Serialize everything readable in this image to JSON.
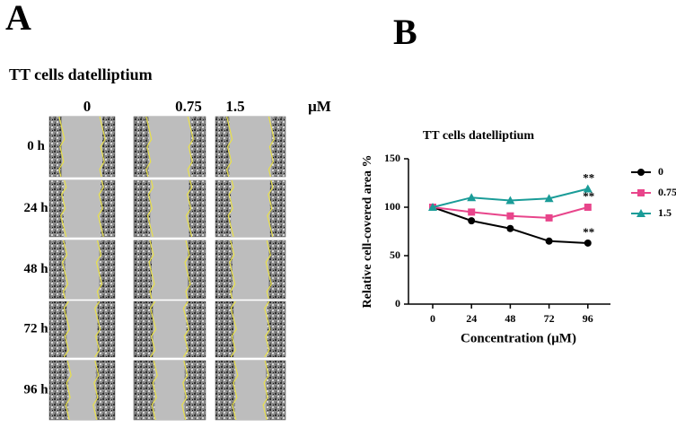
{
  "panel_a": {
    "label": "A",
    "title": "TT cells datelliptium",
    "column_headers": [
      "0",
      "0.75",
      "1.5"
    ],
    "unit": "μM",
    "row_labels": [
      "0 h",
      "24 h",
      "48 h",
      "72 h",
      "96 h"
    ]
  },
  "panel_b": {
    "label": "B"
  },
  "chart_data": {
    "type": "line",
    "title": "TT cells datelliptium",
    "x_label": "Concentration (μM)",
    "y_label": "Relative cell-covered area %",
    "x": [
      0,
      24,
      48,
      72,
      96
    ],
    "xlim": [
      -15,
      110
    ],
    "xticks": [
      0,
      24,
      48,
      72,
      96
    ],
    "ylim": [
      0,
      150
    ],
    "yticks": [
      0,
      50,
      100,
      150
    ],
    "legend": "right",
    "series": [
      {
        "name": "0",
        "color": "#000000",
        "marker": "circle",
        "values": [
          100,
          86,
          78,
          65,
          63
        ],
        "annotation": "**"
      },
      {
        "name": "0.75",
        "color": "#e8458b",
        "marker": "square",
        "values": [
          100,
          95,
          91,
          89,
          100
        ],
        "annotation": "**"
      },
      {
        "name": "1.5",
        "color": "#1a9c98",
        "marker": "triangle",
        "values": [
          100,
          110,
          107,
          109,
          119
        ],
        "annotation": "**"
      }
    ]
  }
}
